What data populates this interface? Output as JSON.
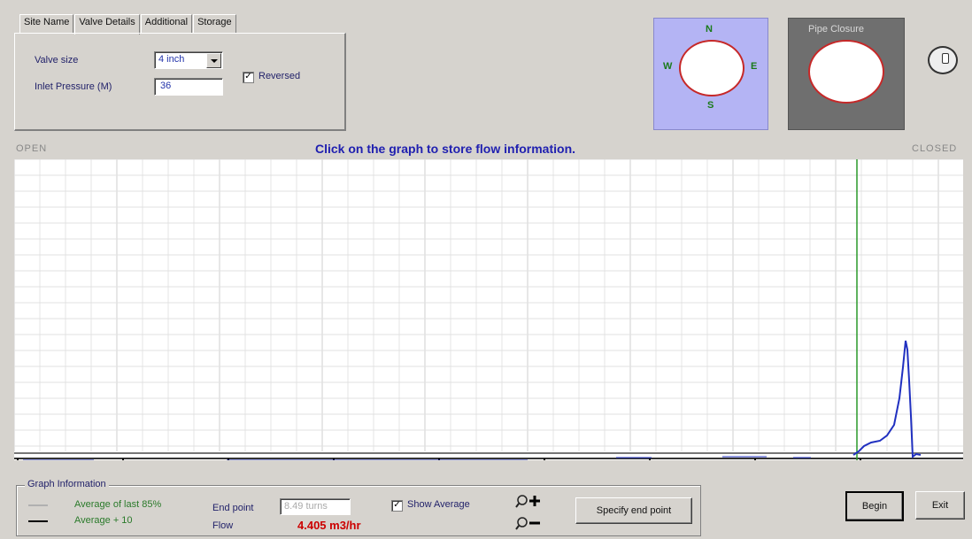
{
  "tabs": [
    {
      "label": "Site Name",
      "active": false
    },
    {
      "label": "Valve Details",
      "active": true
    },
    {
      "label": "Additional",
      "active": false
    },
    {
      "label": "Storage",
      "active": false
    }
  ],
  "valve_details": {
    "valve_size_label": "Valve size",
    "valve_size_value": "4 inch",
    "inlet_pressure_label": "Inlet Pressure (M)",
    "inlet_pressure_value": "36",
    "reversed_label": "Reversed",
    "reversed_checked": true
  },
  "compass": {
    "n": "N",
    "s": "S",
    "e": "E",
    "w": "W"
  },
  "pipe_closure": {
    "title": "Pipe Closure"
  },
  "graph": {
    "open_label": "OPEN",
    "closed_label": "CLOSED",
    "instruction": "Click on the graph to store flow information."
  },
  "graph_info": {
    "title": "Graph Information",
    "average_last_label": "Average of last 85%",
    "average_plus_label": "Average + 10",
    "end_point_label": "End point",
    "end_point_value": "8.49 turns",
    "flow_label": "Flow",
    "flow_value": "4.405 m3/hr",
    "show_average_label": "Show Average",
    "show_average_checked": true,
    "specify_button": "Specify end point"
  },
  "buttons": {
    "begin": "Begin",
    "exit": "Exit"
  },
  "colors": {
    "instruction": "#2020b0",
    "flow_value": "#cc0000",
    "curve": "#2030c0",
    "marker": "#2a9a2a",
    "grid": "#d6d6d6"
  }
}
